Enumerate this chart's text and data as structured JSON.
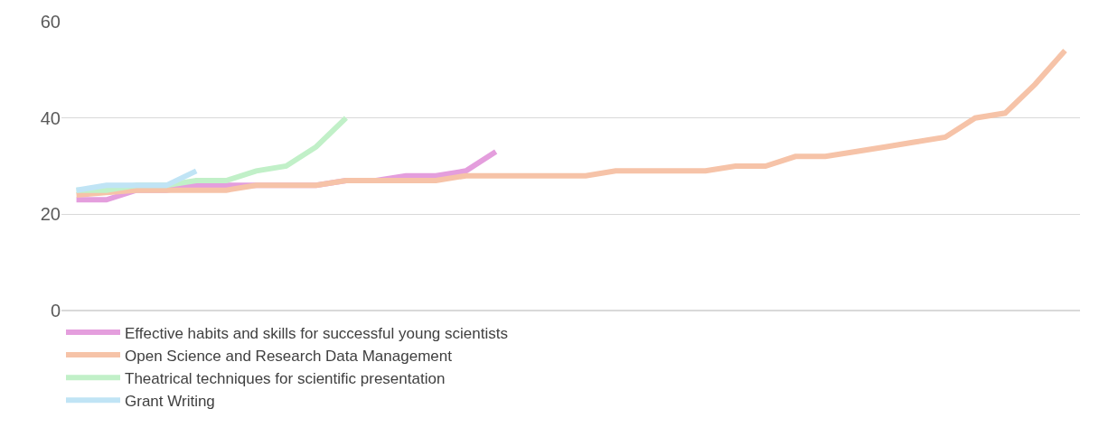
{
  "chart_data": {
    "type": "line",
    "categories": [
      null,
      null,
      null,
      null,
      null,
      null,
      null,
      null,
      null,
      null,
      null,
      null,
      null,
      null,
      null,
      null,
      null,
      null,
      null,
      null,
      null,
      null,
      null,
      null,
      null,
      null,
      null,
      null,
      null,
      null,
      null,
      null,
      null,
      null
    ],
    "series": [
      {
        "name": "Effective habits and skills for successful young scientists",
        "color": "#e49edd",
        "values": [
          23,
          23,
          25,
          25,
          26,
          26,
          26,
          26,
          26,
          27,
          27,
          28,
          28,
          29,
          33,
          null,
          null,
          null,
          null,
          null,
          null,
          null,
          null,
          null,
          null,
          null,
          null,
          null,
          null,
          null,
          null,
          null,
          null,
          null
        ]
      },
      {
        "name": "Open Science and Research Data Management",
        "color": "#f6c3a8",
        "values": [
          24,
          24.5,
          25,
          25,
          25,
          25,
          26,
          26,
          26,
          27,
          27,
          27,
          27,
          28,
          28,
          28,
          28,
          28,
          29,
          29,
          29,
          29,
          30,
          30,
          32,
          32,
          33,
          34,
          35,
          36,
          40,
          41,
          47,
          54
        ]
      },
      {
        "name": "Theatrical techniques for scientific presentation",
        "color": "#c1f0c8",
        "values": [
          25,
          25,
          26,
          26,
          27,
          27,
          29,
          30,
          34,
          40,
          null,
          null,
          null,
          null,
          null,
          null,
          null,
          null,
          null,
          null,
          null,
          null,
          null,
          null,
          null,
          null,
          null,
          null,
          null,
          null,
          null,
          null,
          null,
          null
        ]
      },
      {
        "name": "Grant Writing",
        "color": "#c0e4f5",
        "values": [
          25,
          26,
          26,
          26,
          29,
          null,
          null,
          null,
          null,
          null,
          null,
          null,
          null,
          null,
          null,
          null,
          null,
          null,
          null,
          null,
          null,
          null,
          null,
          null,
          null,
          null,
          null,
          null,
          null,
          null,
          null,
          null,
          null,
          null
        ]
      }
    ],
    "ylim": [
      0,
      60
    ],
    "yticks": [
      0,
      20,
      40,
      60
    ],
    "grid": "y",
    "legend": "bottom",
    "tick_labels": "y",
    "line_style": "solid",
    "marker": "none"
  }
}
